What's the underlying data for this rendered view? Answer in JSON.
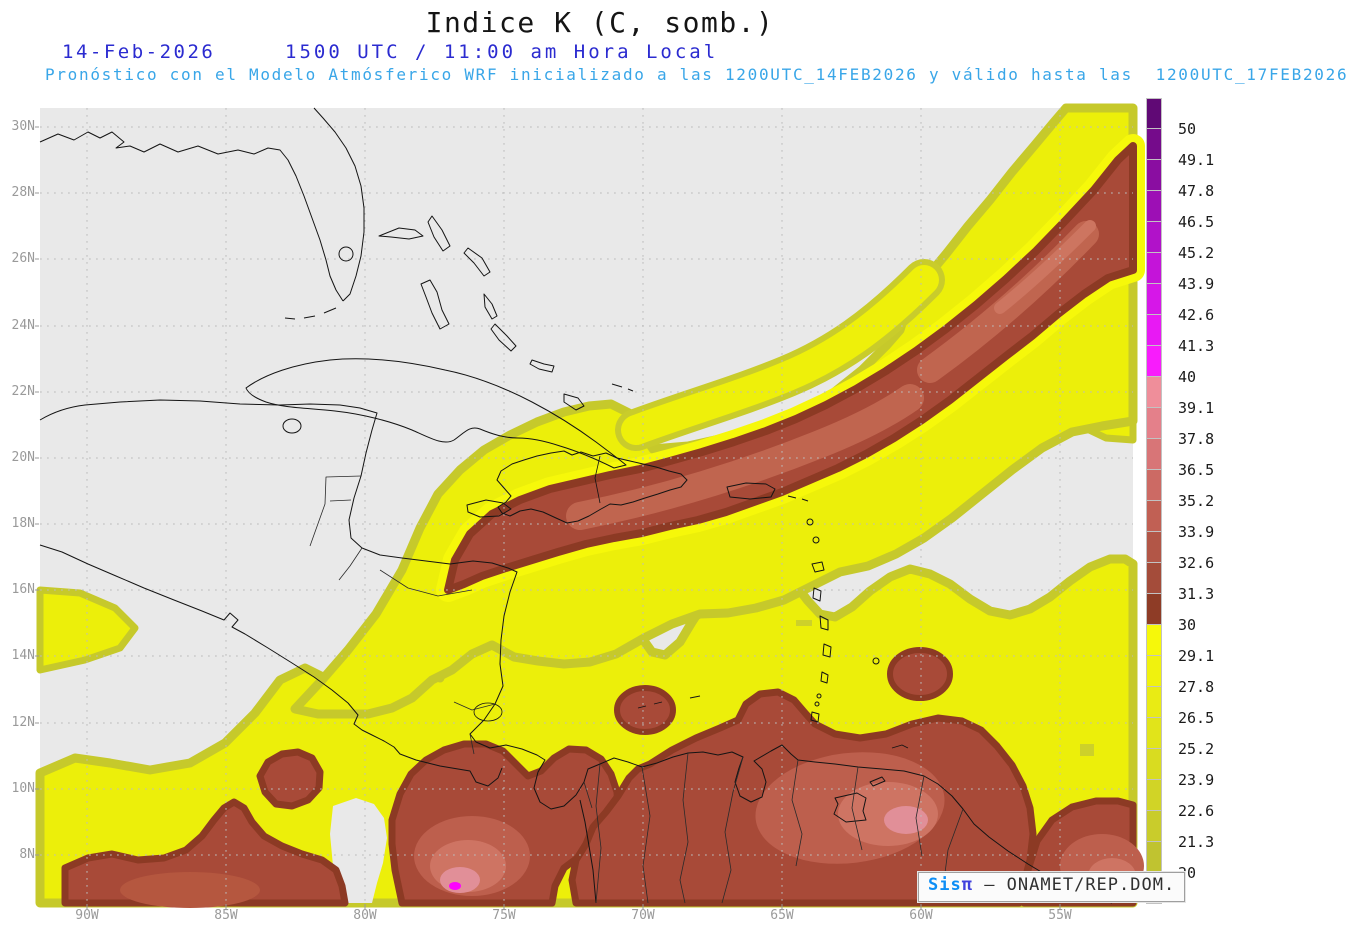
{
  "header": {
    "title": "Indice K (C, somb.)",
    "date": "14-Feb-2026",
    "time": "1500 UTC / 11:00 am Hora Local",
    "forecast": "Pronóstico con el Modelo Atmósferico WRF inicializado a las 1200UTC_14FEB2026 y válido hasta las  1200UTC_17FEB2026"
  },
  "map": {
    "lat_labels": [
      "30N",
      "28N",
      "26N",
      "24N",
      "22N",
      "20N",
      "18N",
      "16N",
      "14N",
      "12N",
      "10N",
      "8N"
    ],
    "lon_labels": [
      "90W",
      "85W",
      "80W",
      "75W",
      "70W",
      "65W",
      "60W",
      "55W"
    ]
  },
  "colorbar": {
    "tick_labels": [
      "50",
      "49.1",
      "47.8",
      "46.5",
      "45.2",
      "43.9",
      "42.6",
      "41.3",
      "40",
      "39.1",
      "37.8",
      "36.5",
      "35.2",
      "33.9",
      "32.6",
      "31.3",
      "30",
      "29.1",
      "27.8",
      "26.5",
      "25.2",
      "23.9",
      "22.6",
      "21.3",
      "20"
    ],
    "segment_colors": [
      "#600975",
      "#750b8b",
      "#8a0da1",
      "#9d0fb5",
      "#b112c9",
      "#c414d9",
      "#d617e8",
      "#e819f4",
      "#f81cfc",
      "#ef8e9a",
      "#e4808a",
      "#d87577",
      "#cc6a64",
      "#c16054",
      "#b25647",
      "#a44c3a",
      "#8e3c26",
      "#f6f80a",
      "#f0f20e",
      "#e9eb14",
      "#e1e41a",
      "#d9dc20",
      "#d1d426",
      "#c9cc2b",
      "#c0c330",
      "#e9e9e9"
    ],
    "scale_min": "20",
    "scale_max": "50"
  },
  "badge": {
    "prefix": "Sis",
    "pi": "π",
    "suffix": " – ONAMET/REP.DOM."
  },
  "region_colors": {
    "background_low": "#e9e9e9",
    "yellow_fill": "#ecef0a",
    "yellow_rim": "#c6c92b",
    "yellow_bright": "#f6f80a",
    "red_fill": "#a84a38",
    "red_rim": "#8c3a24",
    "salmon": "#c0654f",
    "pink": "#e18f98",
    "magenta": "#fd02fd",
    "header_blue": "#2b2bd0",
    "header_cyan": "#39a6e8"
  }
}
